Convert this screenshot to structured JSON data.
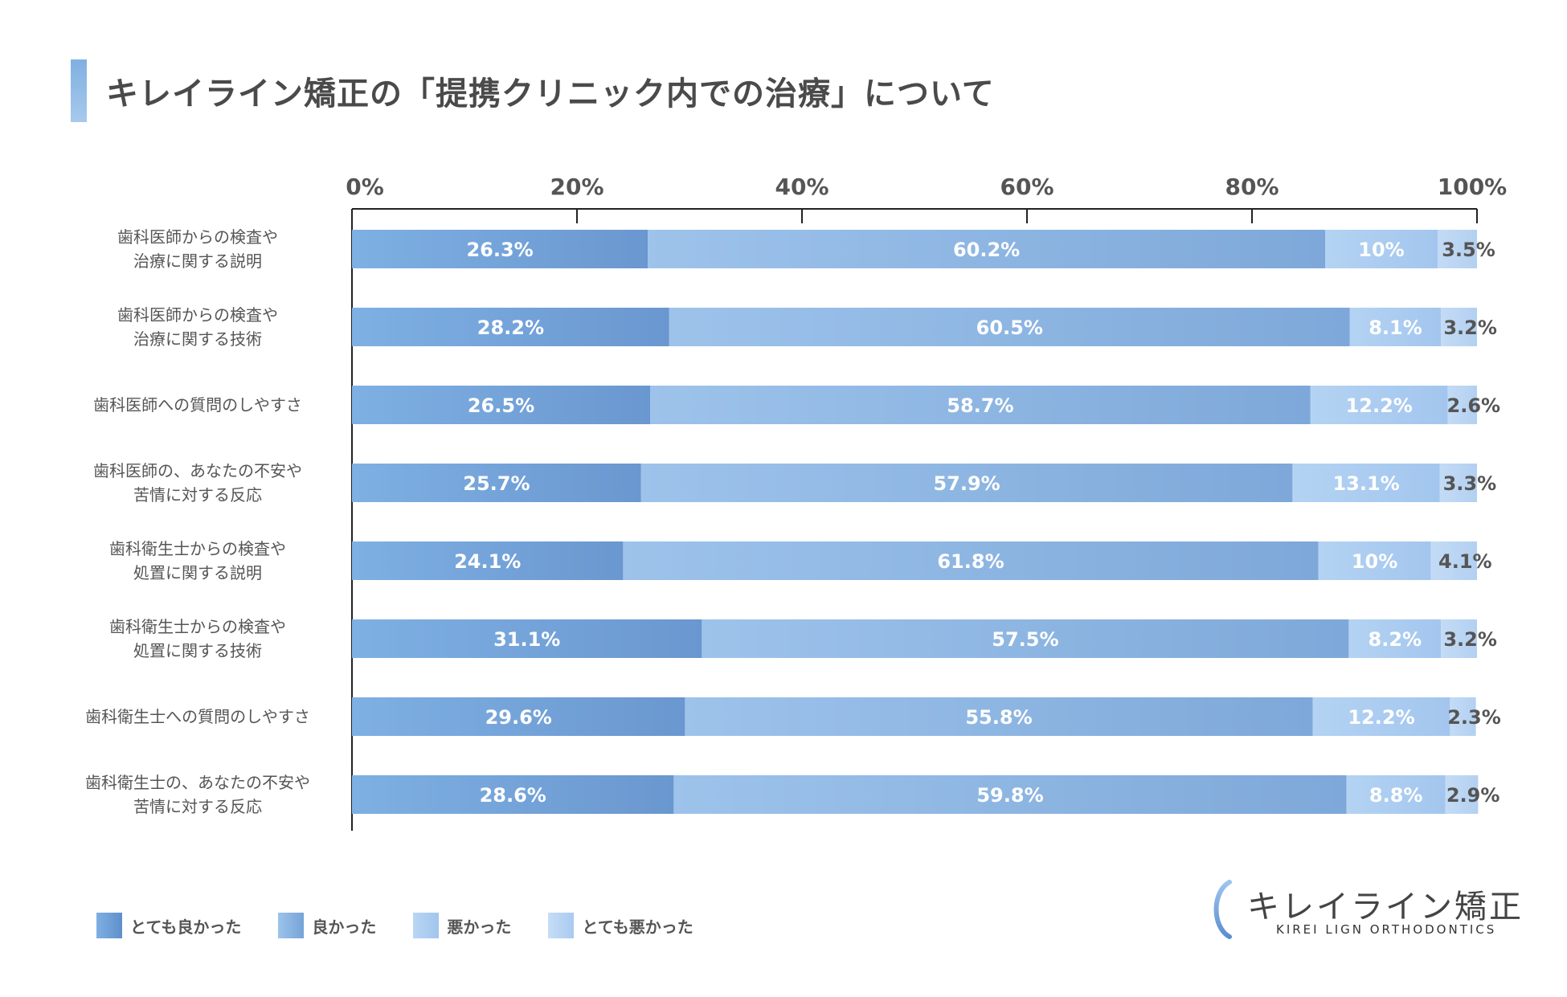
{
  "title": "キレイライン矯正の「提携クリニック内での治療」について",
  "chart_data": {
    "type": "bar",
    "orientation": "horizontal",
    "stacked": true,
    "title": "キレイライン矯正の「提携クリニック内での治療」について",
    "xlim": [
      0,
      100
    ],
    "ticks": [
      "0%",
      "20%",
      "40%",
      "60%",
      "80%",
      "100%"
    ],
    "categories": [
      [
        "歯科医師からの検査や",
        "治療に関する説明"
      ],
      [
        "歯科医師からの検査や",
        "治療に関する技術"
      ],
      [
        "歯科医師への質問のしやすさ"
      ],
      [
        "歯科医師の、あなたの不安や",
        "苦情に対する反応"
      ],
      [
        "歯科衛生士からの検査や",
        "処置に関する説明"
      ],
      [
        "歯科衛生士からの検査や",
        "処置に関する技術"
      ],
      [
        "歯科衛生士への質問のしやすさ"
      ],
      [
        "歯科衛生士の、あなたの不安や",
        "苦情に対する反応"
      ]
    ],
    "series": [
      {
        "name": "とても良かった",
        "values": [
          26.3,
          28.2,
          26.5,
          25.7,
          24.1,
          31.1,
          29.6,
          28.6
        ],
        "labels": [
          "26.3%",
          "28.2%",
          "26.5%",
          "25.7%",
          "24.1%",
          "31.1%",
          "29.6%",
          "28.6%"
        ],
        "color_start": "#7eb0e3",
        "color_end": "#6a97cf"
      },
      {
        "name": "良かった",
        "values": [
          60.2,
          60.5,
          58.7,
          57.9,
          61.8,
          57.5,
          55.8,
          59.8
        ],
        "labels": [
          "60.2%",
          "60.5%",
          "58.7%",
          "57.9%",
          "61.8%",
          "57.5%",
          "55.8%",
          "59.8%"
        ],
        "color_start": "#9dc3eb",
        "color_end": "#7ea8d9"
      },
      {
        "name": "悪かった",
        "values": [
          10,
          8.1,
          12.2,
          13.1,
          10,
          8.2,
          12.2,
          8.8
        ],
        "labels": [
          "10%",
          "8.1%",
          "12.2%",
          "13.1%",
          "10%",
          "8.2%",
          "12.2%",
          "8.8%"
        ],
        "color_start": "#b4d3f3",
        "color_end": "#a3c6ee"
      },
      {
        "name": "とても悪かった",
        "values": [
          3.5,
          3.2,
          2.6,
          3.3,
          4.1,
          3.2,
          2.3,
          2.9
        ],
        "labels": [
          "3.5%",
          "3.2%",
          "2.6%",
          "3.3%",
          "4.1%",
          "3.2%",
          "2.3%",
          "2.9%"
        ],
        "color_start": "#c3dbf5",
        "color_end": "#b3d0f1"
      }
    ],
    "legend": [
      "とても良かった",
      "良かった",
      "悪かった",
      "とても悪かった"
    ],
    "legend_position": "bottom-left"
  },
  "logo": {
    "name": "キレイライン矯正",
    "subtitle": "KIREI LIGN ORTHODONTICS"
  }
}
